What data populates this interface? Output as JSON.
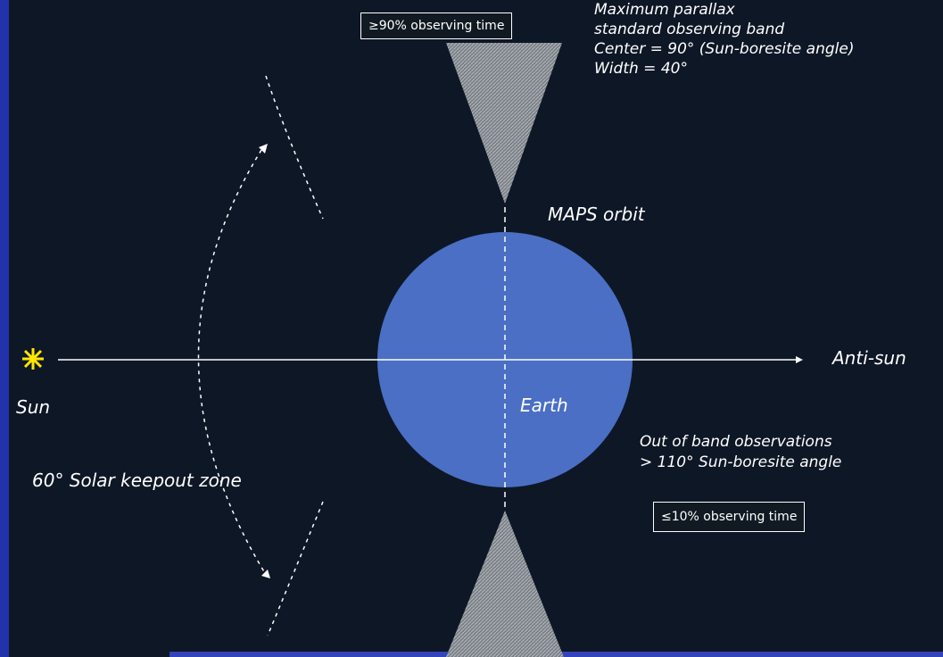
{
  "labels": {
    "top_box": "≥90% observing time",
    "band_desc": [
      "Maximum parallax",
      "standard observing band",
      "Center = 90° (Sun-boresite angle)",
      "Width = 40°"
    ],
    "orbit": "MAPS orbit",
    "anti_sun": "Anti-sun",
    "sun": "Sun",
    "earth": "Earth",
    "keepout": "60° Solar keepout zone",
    "oob_desc": [
      "Out of band observations",
      "> 110° Sun-boresite angle"
    ],
    "bottom_box": "≤10% observing time"
  },
  "colors": {
    "background": "#0e1726",
    "earth": "#4a6fc4",
    "sun": "#ffe600",
    "band_cone": "#8a8f96",
    "lines": "#ffffff"
  },
  "icons": {
    "sun": "sun-starburst-icon",
    "anti_sun_arrow": "arrow-right-icon"
  }
}
